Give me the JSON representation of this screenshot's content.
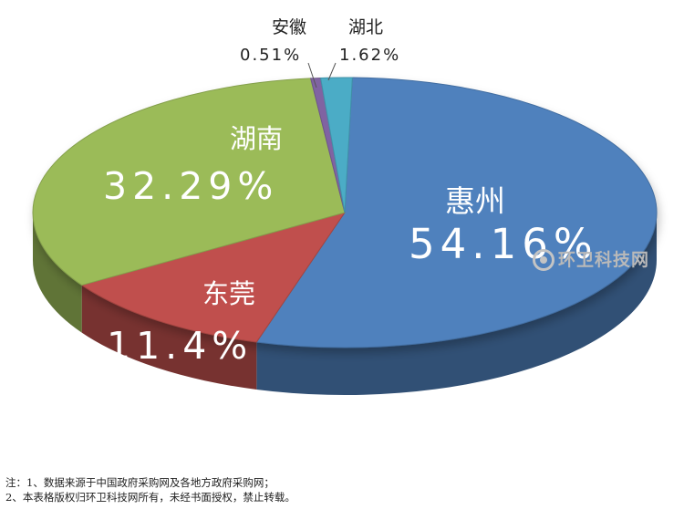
{
  "chart_data": {
    "type": "pie",
    "title": "",
    "slices": [
      {
        "name": "惠州",
        "value": 54.16,
        "label": "54.16%",
        "color": "#4f81bd"
      },
      {
        "name": "东莞",
        "value": 11.4,
        "label": "11.4%",
        "color": "#c0504d"
      },
      {
        "name": "湖南",
        "value": 32.29,
        "label": "32.29%",
        "color": "#9bbb59"
      },
      {
        "name": "安徽",
        "value": 0.51,
        "label": "0.51%",
        "color": "#8064a2"
      },
      {
        "name": "湖北",
        "value": 1.62,
        "label": "1.62%",
        "color": "#4bacc6"
      }
    ],
    "three_d": true,
    "legend": "none"
  },
  "watermark": {
    "text": "环卫科技网"
  },
  "notes": [
    "注：1、数据来源于中国政府采购网及各地方政府采购网；",
    "2、本表格版权归环卫科技网所有，未经书面授权，禁止转载。"
  ]
}
